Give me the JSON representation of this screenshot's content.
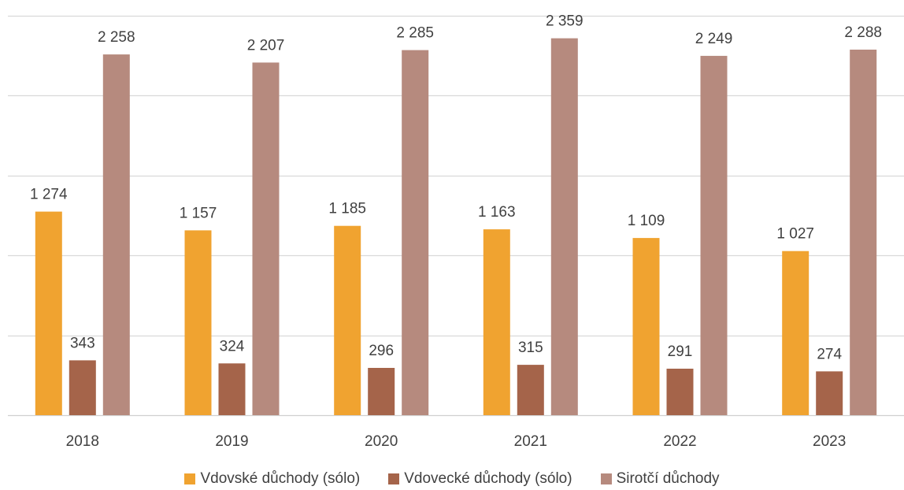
{
  "chart_data": {
    "type": "bar",
    "categories": [
      "2018",
      "2019",
      "2020",
      "2021",
      "2022",
      "2023"
    ],
    "series": [
      {
        "name": "Vdovské důchody (sólo)",
        "color": "#F0A330",
        "values": [
          1274,
          1157,
          1185,
          1163,
          1109,
          1027
        ],
        "labels": [
          "1 274",
          "1 157",
          "1 185",
          "1 163",
          "1 109",
          "1 027"
        ]
      },
      {
        "name": "Vdovecké důchody (sólo)",
        "color": "#A5644A",
        "values": [
          343,
          324,
          296,
          315,
          291,
          274
        ],
        "labels": [
          "343",
          "324",
          "296",
          "315",
          "291",
          "274"
        ]
      },
      {
        "name": "Sirotčí důchody",
        "color": "#B68A7E",
        "values": [
          2258,
          2207,
          2285,
          2359,
          2249,
          2288
        ],
        "labels": [
          "2 258",
          "2 207",
          "2 285",
          "2 359",
          "2 249",
          "2 288"
        ]
      }
    ],
    "ylim": [
      0,
      2500
    ],
    "grid": true,
    "legend_position": "bottom",
    "title": "",
    "xlabel": "",
    "ylabel": ""
  }
}
